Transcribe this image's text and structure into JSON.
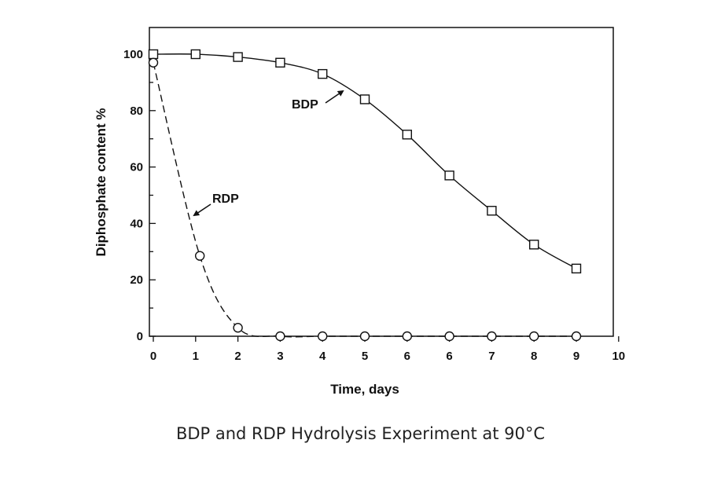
{
  "chart_data": {
    "type": "line",
    "title": "",
    "xlabel": "Time, days",
    "ylabel": "Diphosphate content  %",
    "x_tick_labels": [
      "0",
      "1",
      "2",
      "3",
      "4",
      "5",
      "6",
      "6",
      "7",
      "8",
      "9",
      "10"
    ],
    "y_tick_labels": [
      "0",
      "20",
      "40",
      "60",
      "80",
      "100"
    ],
    "ylim": [
      0,
      109
    ],
    "x_note": "x values are tick positions (index of x_tick_labels)",
    "series": [
      {
        "name": "BDP",
        "marker": "square",
        "line": "solid",
        "x": [
          0,
          1,
          2,
          3,
          4,
          5,
          6,
          7,
          8,
          9,
          10
        ],
        "y": [
          100,
          100,
          99,
          97,
          93,
          84,
          71.5,
          57,
          44.5,
          32.5,
          24
        ]
      },
      {
        "name": "RDP",
        "marker": "circle",
        "line": "dashed",
        "x": [
          0,
          1.1,
          2,
          3,
          4,
          5,
          6,
          7,
          8,
          9,
          10
        ],
        "y": [
          97,
          28.5,
          3,
          0,
          0,
          0,
          0,
          0,
          0,
          0,
          0
        ]
      }
    ],
    "annotations": [
      {
        "text": "BDP",
        "series": "BDP"
      },
      {
        "text": "RDP",
        "series": "RDP"
      }
    ]
  },
  "caption": "BDP and RDP Hydrolysis Experiment at 90°C"
}
